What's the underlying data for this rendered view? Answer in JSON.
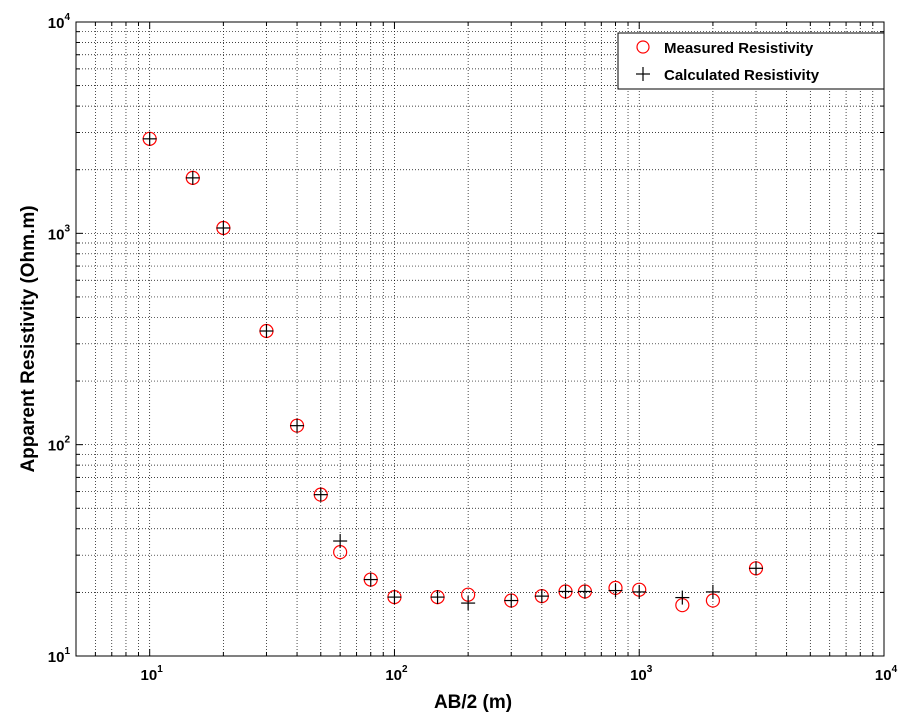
{
  "chart_data": {
    "type": "scatter",
    "title": "",
    "xlabel": "AB/2 (m)",
    "ylabel": "Apparent Resistivity (Ohm.m)",
    "xscale": "log",
    "yscale": "log",
    "xlim": [
      5,
      10000
    ],
    "ylim": [
      10,
      10000
    ],
    "grid": true,
    "legend_position": "top-right",
    "x_ticks": [
      {
        "base": "10",
        "exp": "1"
      },
      {
        "base": "10",
        "exp": "2"
      },
      {
        "base": "10",
        "exp": "3"
      },
      {
        "base": "10",
        "exp": "4"
      }
    ],
    "y_ticks": [
      {
        "base": "10",
        "exp": "1"
      },
      {
        "base": "10",
        "exp": "2"
      },
      {
        "base": "10",
        "exp": "3"
      },
      {
        "base": "10",
        "exp": "4"
      }
    ],
    "series": [
      {
        "name": "Measured Resistivity",
        "marker": "circle",
        "color": "#ff0000",
        "x": [
          10,
          15,
          20,
          30,
          40,
          50,
          60,
          80,
          100,
          150,
          200,
          300,
          400,
          500,
          600,
          800,
          1000,
          1500,
          2000,
          3000
        ],
        "y": [
          2800,
          1830,
          1060,
          345,
          123,
          58,
          31,
          23,
          19,
          19,
          19.5,
          18.3,
          19.2,
          20.2,
          20.2,
          21,
          20.6,
          17.4,
          18.3,
          26
        ]
      },
      {
        "name": "Calculated Resistivity",
        "marker": "plus",
        "color": "#000000",
        "x": [
          10,
          15,
          20,
          30,
          40,
          50,
          60,
          80,
          100,
          150,
          200,
          300,
          400,
          500,
          600,
          800,
          1000,
          1500,
          2000,
          3000
        ],
        "y": [
          2800,
          1830,
          1060,
          345,
          123,
          58,
          35,
          23,
          19,
          19,
          17.8,
          18.3,
          19.2,
          20.2,
          20.2,
          20.4,
          20.1,
          18.9,
          20.1,
          26
        ]
      }
    ]
  }
}
